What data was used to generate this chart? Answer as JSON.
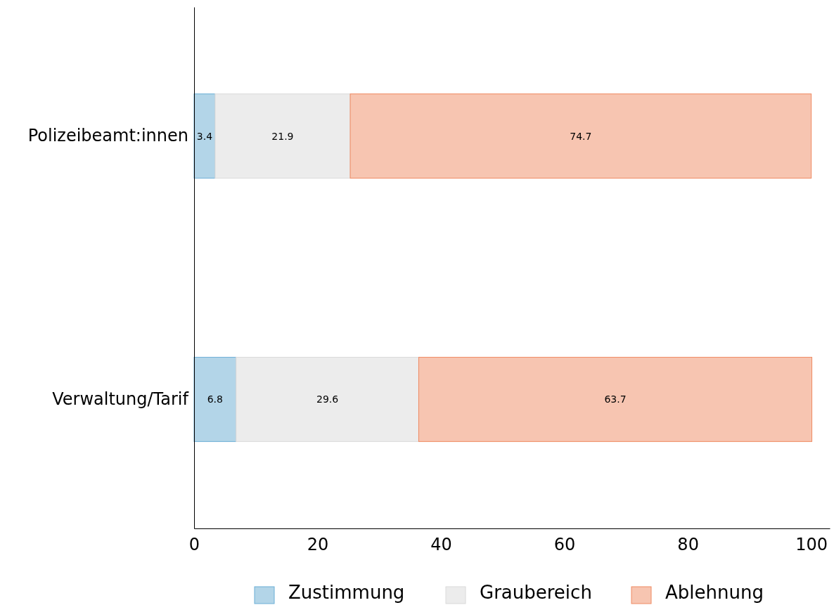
{
  "chart_data": {
    "type": "bar",
    "orientation": "horizontal",
    "stacked": true,
    "categories": [
      "Polizeibeamt:innen",
      "Verwaltung/Tarif"
    ],
    "series": [
      {
        "name": "Zustimmung",
        "color": "#b3d5e8",
        "values": [
          3.4,
          6.8
        ]
      },
      {
        "name": "Graubereich",
        "color": "#ececec",
        "values": [
          21.9,
          29.6
        ]
      },
      {
        "name": "Ablehnung",
        "color": "#f7c5b1",
        "values": [
          74.7,
          63.7
        ]
      }
    ],
    "xlim": [
      0,
      103
    ],
    "xticks": [
      0,
      20,
      40,
      60,
      80,
      100
    ],
    "data_labels": true,
    "legend": "bottom",
    "grid": false
  }
}
